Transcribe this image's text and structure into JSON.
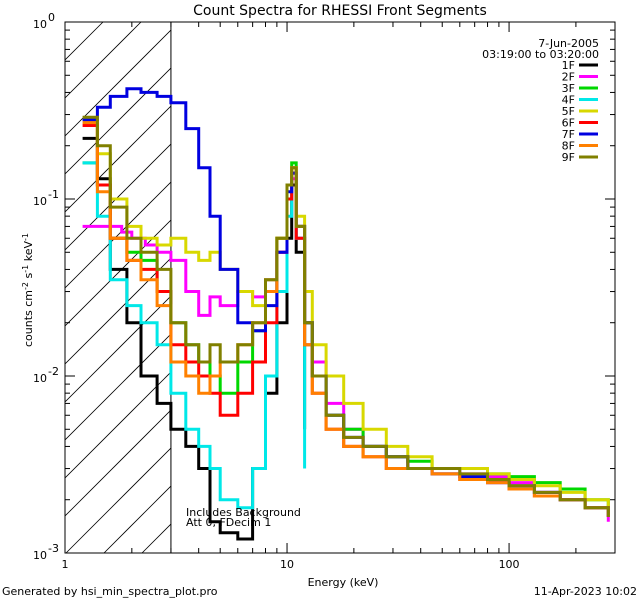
{
  "chart_data": {
    "type": "line",
    "title": "Count Spectra for RHESSI Front Segments",
    "xlabel": "Energy (keV)",
    "ylabel_parts": [
      "counts cm",
      "-2",
      " s",
      "-1",
      " keV",
      "-1"
    ],
    "xscale": "log",
    "yscale": "log",
    "xlim": [
      1,
      300
    ],
    "ylim": [
      0.001,
      1
    ],
    "x_ticks": [
      {
        "value": 1,
        "label": "1"
      },
      {
        "value": 10,
        "label": "10"
      },
      {
        "value": 100,
        "label": "100"
      }
    ],
    "y_ticks": [
      {
        "value": 0.001,
        "base": "10",
        "exp": "-3"
      },
      {
        "value": 0.01,
        "base": "10",
        "exp": "-2"
      },
      {
        "value": 0.1,
        "base": "10",
        "exp": "-1"
      },
      {
        "value": 1,
        "base": "10",
        "exp": "0"
      }
    ],
    "hatched_region_x": [
      1,
      3
    ],
    "date_text": "7-Jun-2005",
    "time_text": "03:19:00 to 03:20:00",
    "annotation_lines": [
      "Includes Background",
      "Att 0, FDecim 1"
    ],
    "series": [
      {
        "name": "1F",
        "color": "#000000",
        "x": [
          1.2,
          1.4,
          1.6,
          1.9,
          2.2,
          2.6,
          3.0,
          3.5,
          4.0,
          4.5,
          5.0,
          6.0,
          7.0,
          8.0,
          9.0,
          10.0,
          10.5,
          11.0,
          12.0
        ],
        "y": [
          0.22,
          0.13,
          0.04,
          0.02,
          0.01,
          0.007,
          0.005,
          0.004,
          0.003,
          0.0015,
          0.0013,
          0.0012,
          0.003,
          0.008,
          0.02,
          0.06,
          0.12,
          0.05,
          0.005
        ]
      },
      {
        "name": "2F",
        "color": "#ff00ff",
        "x": [
          1.2,
          1.5,
          1.8,
          2.0,
          2.3,
          2.6,
          3.0,
          3.5,
          4.0,
          4.5,
          5.0,
          6.0,
          7.0,
          8.0,
          9.0,
          10.0,
          10.5,
          11.0,
          12.0,
          13.0,
          15.0,
          18.0,
          22.0,
          28.0,
          35.0,
          45.0,
          60.0,
          80.0,
          100.0,
          130.0,
          170.0,
          220.0,
          280.0
        ],
        "y": [
          0.07,
          0.07,
          0.065,
          0.06,
          0.055,
          0.05,
          0.045,
          0.03,
          0.022,
          0.028,
          0.025,
          0.03,
          0.028,
          0.035,
          0.05,
          0.1,
          0.13,
          0.06,
          0.02,
          0.012,
          0.007,
          0.005,
          0.004,
          0.0035,
          0.003,
          0.003,
          0.0028,
          0.0027,
          0.0025,
          0.0022,
          0.002,
          0.0018,
          0.0015
        ]
      },
      {
        "name": "3F",
        "color": "#00d800",
        "x": [
          1.2,
          1.4,
          1.6,
          1.9,
          2.2,
          2.6,
          3.0,
          3.5,
          4.0,
          4.5,
          5.0,
          6.0,
          7.0,
          8.0,
          9.0,
          10.0,
          10.5,
          11.0,
          12.0,
          13.0,
          15.0,
          18.0,
          22.0,
          28.0,
          35.0,
          45.0,
          60.0,
          80.0,
          100.0,
          130.0,
          170.0,
          220.0,
          280.0
        ],
        "y": [
          0.16,
          0.12,
          0.06,
          0.05,
          0.045,
          0.03,
          0.02,
          0.015,
          0.012,
          0.01,
          0.008,
          0.012,
          0.018,
          0.03,
          0.06,
          0.12,
          0.16,
          0.07,
          0.02,
          0.01,
          0.006,
          0.005,
          0.004,
          0.0035,
          0.0033,
          0.003,
          0.003,
          0.0028,
          0.0027,
          0.0025,
          0.0023,
          0.002,
          0.0018
        ]
      },
      {
        "name": "4F",
        "color": "#00e8e8",
        "x": [
          1.2,
          1.4,
          1.6,
          1.9,
          2.2,
          2.6,
          3.0,
          3.5,
          4.0,
          4.5,
          5.0,
          6.0,
          7.0,
          8.0,
          9.0,
          10.0,
          10.5,
          11.0,
          12.0
        ],
        "y": [
          0.16,
          0.08,
          0.035,
          0.025,
          0.02,
          0.015,
          0.008,
          0.005,
          0.004,
          0.003,
          0.002,
          0.0018,
          0.003,
          0.01,
          0.03,
          0.08,
          0.14,
          0.06,
          0.003
        ]
      },
      {
        "name": "5F",
        "color": "#d8d800",
        "x": [
          1.2,
          1.4,
          1.6,
          1.9,
          2.2,
          2.6,
          3.0,
          3.5,
          4.0,
          4.5,
          5.0,
          6.0,
          7.0,
          8.0,
          9.0,
          10.0,
          10.5,
          11.0,
          12.0,
          13.0,
          15.0,
          18.0,
          22.0,
          28.0,
          35.0,
          45.0,
          60.0,
          80.0,
          100.0,
          130.0,
          170.0,
          220.0,
          280.0
        ],
        "y": [
          0.28,
          0.18,
          0.1,
          0.07,
          0.06,
          0.055,
          0.06,
          0.05,
          0.045,
          0.05,
          0.04,
          0.03,
          0.025,
          0.035,
          0.06,
          0.12,
          0.15,
          0.08,
          0.03,
          0.015,
          0.01,
          0.007,
          0.005,
          0.004,
          0.0035,
          0.003,
          0.003,
          0.0028,
          0.0026,
          0.0024,
          0.0022,
          0.002,
          0.0018
        ]
      },
      {
        "name": "6F",
        "color": "#ff0000",
        "x": [
          1.2,
          1.4,
          1.6,
          1.9,
          2.2,
          2.6,
          3.0,
          3.5,
          4.0,
          4.5,
          5.0,
          6.0,
          7.0,
          8.0,
          9.0,
          10.0,
          10.5,
          11.0,
          12.0,
          13.0,
          15.0,
          18.0,
          22.0,
          28.0,
          35.0,
          45.0,
          60.0,
          80.0,
          100.0,
          130.0,
          170.0,
          220.0,
          280.0
        ],
        "y": [
          0.26,
          0.12,
          0.06,
          0.045,
          0.04,
          0.03,
          0.015,
          0.012,
          0.01,
          0.008,
          0.006,
          0.008,
          0.012,
          0.02,
          0.05,
          0.1,
          0.14,
          0.06,
          0.015,
          0.008,
          0.005,
          0.004,
          0.0035,
          0.003,
          0.003,
          0.0028,
          0.0026,
          0.0025,
          0.0023,
          0.0021,
          0.002,
          0.0018,
          0.0016
        ]
      },
      {
        "name": "7F",
        "color": "#0000e0",
        "x": [
          1.2,
          1.4,
          1.6,
          1.9,
          2.2,
          2.6,
          3.0,
          3.5,
          4.0,
          4.5,
          5.0,
          6.0,
          7.0,
          8.0,
          9.0,
          10.0,
          10.5,
          11.0,
          12.0,
          13.0,
          15.0,
          18.0,
          22.0,
          28.0,
          35.0,
          45.0,
          60.0,
          80.0,
          100.0,
          130.0,
          170.0,
          220.0,
          280.0
        ],
        "y": [
          0.28,
          0.33,
          0.38,
          0.42,
          0.4,
          0.38,
          0.35,
          0.25,
          0.15,
          0.08,
          0.04,
          0.02,
          0.018,
          0.025,
          0.05,
          0.11,
          0.14,
          0.07,
          0.02,
          0.01,
          0.006,
          0.0045,
          0.004,
          0.0035,
          0.003,
          0.0028,
          0.0027,
          0.0025,
          0.0024,
          0.0022,
          0.002,
          0.0018,
          0.0016
        ]
      },
      {
        "name": "8F",
        "color": "#ff8000",
        "x": [
          1.2,
          1.4,
          1.6,
          1.9,
          2.2,
          2.6,
          3.0,
          3.5,
          4.0,
          4.5,
          5.0,
          6.0,
          7.0,
          8.0,
          9.0,
          10.0,
          10.5,
          11.0,
          12.0,
          13.0,
          15.0,
          18.0,
          22.0,
          28.0,
          35.0,
          45.0,
          60.0,
          80.0,
          100.0,
          130.0,
          170.0,
          220.0,
          280.0
        ],
        "y": [
          0.27,
          0.11,
          0.06,
          0.045,
          0.035,
          0.025,
          0.012,
          0.01,
          0.008,
          0.01,
          0.012,
          0.015,
          0.02,
          0.03,
          0.06,
          0.12,
          0.15,
          0.07,
          0.015,
          0.008,
          0.005,
          0.004,
          0.0035,
          0.003,
          0.003,
          0.0028,
          0.0026,
          0.0025,
          0.0023,
          0.0021,
          0.002,
          0.0018,
          0.0016
        ]
      },
      {
        "name": "9F",
        "color": "#808000",
        "x": [
          1.2,
          1.4,
          1.6,
          1.9,
          2.2,
          2.6,
          3.0,
          3.5,
          4.0,
          4.5,
          5.0,
          6.0,
          7.0,
          8.0,
          9.0,
          10.0,
          10.5,
          11.0,
          12.0,
          13.0,
          15.0,
          18.0,
          22.0,
          28.0,
          35.0,
          45.0,
          60.0,
          80.0,
          100.0,
          130.0,
          170.0,
          220.0,
          280.0
        ],
        "y": [
          0.29,
          0.2,
          0.09,
          0.06,
          0.05,
          0.04,
          0.02,
          0.015,
          0.012,
          0.015,
          0.012,
          0.015,
          0.02,
          0.035,
          0.06,
          0.12,
          0.15,
          0.07,
          0.02,
          0.01,
          0.006,
          0.0045,
          0.004,
          0.0035,
          0.003,
          0.003,
          0.0028,
          0.0026,
          0.0024,
          0.0022,
          0.002,
          0.0018,
          0.0016
        ]
      }
    ]
  },
  "footer": {
    "generated_by": "Generated by hsi_min_spectra_plot.pro",
    "timestamp": "11-Apr-2023 10:02"
  }
}
